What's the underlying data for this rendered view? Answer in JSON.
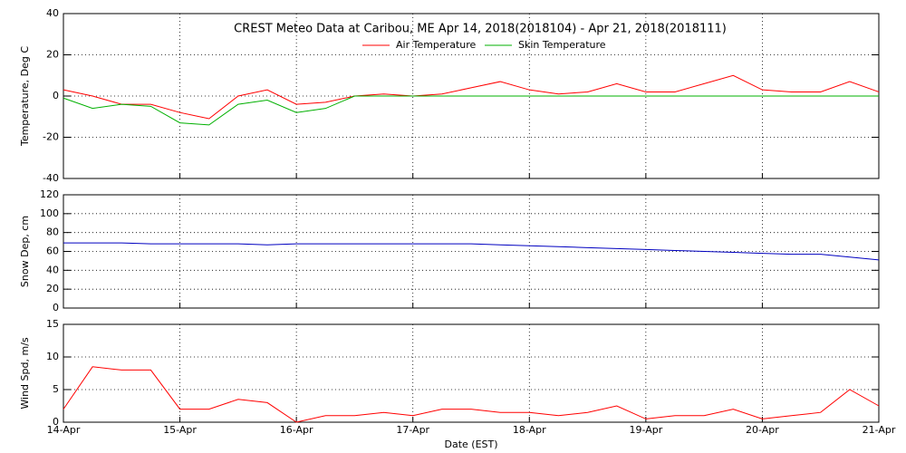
{
  "chart_data": [
    {
      "type": "line",
      "title": "CREST Meteo Data at Caribou, ME   Apr 14, 2018(2018104) - Apr 21, 2018(2018111)",
      "y_label": "Temperature, Deg C",
      "x": [
        14,
        14.25,
        14.5,
        14.75,
        15,
        15.25,
        15.5,
        15.75,
        16,
        16.25,
        16.5,
        16.75,
        17,
        17.25,
        17.5,
        17.75,
        18,
        18.25,
        18.5,
        18.75,
        19,
        19.25,
        19.5,
        19.75,
        20,
        20.25,
        20.5,
        20.75,
        21
      ],
      "series": [
        {
          "name": "Air Temperature",
          "color": "#ff0000",
          "values": [
            3,
            0,
            -4,
            -4,
            -8,
            -11,
            0,
            3,
            -4,
            -3,
            0,
            1,
            0,
            1,
            4,
            7,
            3,
            1,
            2,
            6,
            2,
            2,
            6,
            10,
            3,
            2,
            2,
            7,
            2
          ]
        },
        {
          "name": "Skin Temperature",
          "color": "#00b000",
          "values": [
            -1,
            -6,
            -4,
            -5,
            -13,
            -14,
            -4,
            -2,
            -8,
            -6,
            0,
            0,
            0,
            0,
            0,
            0,
            0,
            0,
            0,
            0,
            0,
            0,
            0,
            0,
            0,
            0,
            0,
            0,
            0
          ]
        }
      ],
      "xlim": [
        14,
        21
      ],
      "ylim": [
        -40,
        40
      ],
      "yticks": [
        -40,
        -20,
        0,
        20,
        40
      ],
      "grid": true,
      "legend": "top"
    },
    {
      "type": "line",
      "y_label": "Snow Dep, cm",
      "x": [
        14,
        14.25,
        14.5,
        14.75,
        15,
        15.25,
        15.5,
        15.75,
        16,
        16.25,
        16.5,
        16.75,
        17,
        17.25,
        17.5,
        17.75,
        18,
        18.25,
        18.5,
        18.75,
        19,
        19.25,
        19.5,
        19.75,
        20,
        20.25,
        20.5,
        20.75,
        21
      ],
      "series": [
        {
          "color": "#0000c0",
          "values": [
            69,
            69,
            69,
            68,
            68,
            68,
            68,
            67,
            68,
            68,
            68,
            68,
            68,
            68,
            68,
            67,
            66,
            65,
            64,
            63,
            62,
            61,
            60,
            59,
            58,
            57,
            57,
            54,
            51
          ]
        }
      ],
      "xlim": [
        14,
        21
      ],
      "ylim": [
        0,
        120
      ],
      "yticks": [
        0,
        20,
        40,
        60,
        80,
        100,
        120
      ],
      "grid": true
    },
    {
      "type": "line",
      "y_label": "Wind Spd, m/s",
      "x_label": "Date (EST)",
      "x": [
        14,
        14.25,
        14.5,
        14.75,
        15,
        15.25,
        15.5,
        15.75,
        16,
        16.25,
        16.5,
        16.75,
        17,
        17.25,
        17.5,
        17.75,
        18,
        18.25,
        18.5,
        18.75,
        19,
        19.25,
        19.5,
        19.75,
        20,
        20.25,
        20.5,
        20.75,
        21
      ],
      "series": [
        {
          "color": "#ff0000",
          "values": [
            2,
            8.5,
            8,
            8,
            2,
            2,
            3.5,
            3,
            0,
            1,
            1,
            1.5,
            1,
            2,
            2,
            1.5,
            1.5,
            1,
            1.5,
            2.5,
            0.5,
            1,
            1,
            2,
            0.5,
            1,
            1.5,
            5,
            2.5
          ]
        }
      ],
      "xlim": [
        14,
        21
      ],
      "ylim": [
        0,
        15
      ],
      "yticks": [
        0,
        5,
        10,
        15
      ],
      "xticks": [
        {
          "value": 14,
          "label": "14-Apr"
        },
        {
          "value": 15,
          "label": "15-Apr"
        },
        {
          "value": 16,
          "label": "16-Apr"
        },
        {
          "value": 17,
          "label": "17-Apr"
        },
        {
          "value": 18,
          "label": "18-Apr"
        },
        {
          "value": 19,
          "label": "19-Apr"
        },
        {
          "value": 20,
          "label": "20-Apr"
        },
        {
          "value": 21,
          "label": "21-Apr"
        }
      ],
      "grid": true
    }
  ]
}
